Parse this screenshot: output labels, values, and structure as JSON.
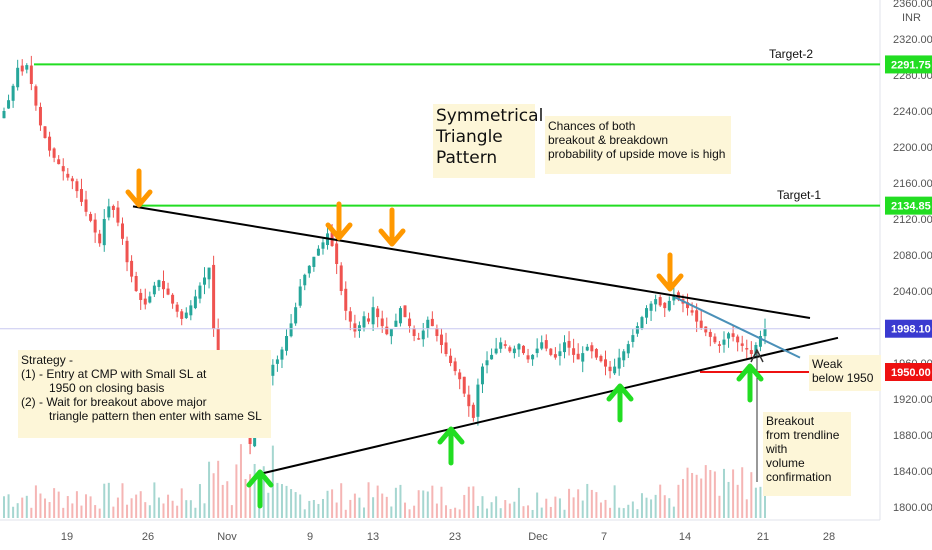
{
  "chart_data": {
    "type": "candlestick",
    "currency": "INR",
    "y_axis": {
      "range": [
        1790,
        2370
      ],
      "ticks": [
        "2360.00",
        "2320.00",
        "2280.00",
        "2240.00",
        "2200.00",
        "2160.00",
        "2120.00",
        "2080.00",
        "2040.00",
        "2000.00",
        "1960.00",
        "1920.00",
        "1880.00",
        "1840.00",
        "1800.00"
      ]
    },
    "x_axis": {
      "ticks": [
        "19",
        "26",
        "Nov",
        "9",
        "13",
        "23",
        "Dec",
        "7",
        "14",
        "21",
        "28"
      ]
    },
    "price_tags": [
      {
        "label": "2291.75",
        "value": 2291.75,
        "color": "#22dd22"
      },
      {
        "label": "2134.85",
        "value": 2134.85,
        "color": "#22dd22"
      },
      {
        "label": "1998.10",
        "value": 1998.1,
        "color": "#3a3ad0"
      },
      {
        "label": "1950.00",
        "value": 1950.0,
        "color": "#ee1111"
      }
    ],
    "horizontal_lines": [
      {
        "name": "Target-2",
        "value": 2291.75,
        "color": "#22dd22"
      },
      {
        "name": "Target-1",
        "value": 2134.85,
        "color": "#22dd22"
      },
      {
        "name": "SL",
        "value": 1950.0,
        "color": "#ee1111"
      },
      {
        "name": "Current",
        "value": 1998.1,
        "color": "#9999e0"
      }
    ],
    "trendlines": {
      "upper": [
        [
          "Oct 26",
          2134
        ],
        [
          "Dec 29",
          2010
        ]
      ],
      "lower": [
        [
          "Nov 4",
          1836
        ],
        [
          "Dec 30",
          1988
        ]
      ]
    },
    "series_close": [
      2240,
      2252,
      2268,
      2288,
      2284,
      2291,
      2270,
      2246,
      2224,
      2210,
      2196,
      2188,
      2181,
      2173,
      2166,
      2162,
      2151,
      2139,
      2128,
      2118,
      2105,
      2093,
      2120,
      2134,
      2130,
      2116,
      2098,
      2072,
      2056,
      2040,
      2030,
      2025,
      2034,
      2046,
      2052,
      2042,
      2036,
      2026,
      2017,
      2009,
      2016,
      2024,
      2034,
      2046,
      2055,
      2066,
      1998,
      1966,
      1952,
      1938,
      1928,
      1918,
      1902,
      1888,
      1870,
      1886,
      1901,
      1931,
      1946,
      1958,
      1964,
      1975,
      1990,
      2004,
      2022,
      2045,
      2058,
      2068,
      2078,
      2087,
      2094,
      2104,
      2090,
      2070,
      2040,
      2018,
      2006,
      1995,
      2002,
      2012,
      2006,
      2022,
      2011,
      2001,
      1992,
      1998,
      2007,
      2021,
      2011,
      2001,
      1990,
      1986,
      1996,
      2008,
      2001,
      1990,
      1980,
      1970,
      1960,
      1951,
      1942,
      1926,
      1912,
      1899,
      1936,
      1956,
      1963,
      1969,
      1976,
      1983,
      1979,
      1973,
      1976,
      1981,
      1971,
      1964,
      1969,
      1976,
      1983,
      1976,
      1969,
      1966,
      1973,
      1983,
      1977,
      1969,
      1964,
      1971,
      1978,
      1973,
      1966,
      1962,
      1956,
      1951,
      1956,
      1966,
      1973,
      1981,
      1991,
      2001,
      2011,
      2021,
      2026,
      2031,
      2024,
      2021,
      2029,
      2036,
      2031,
      2026,
      2021,
      2016,
      2006,
      1999,
      1994,
      1989,
      1983,
      1979,
      1986,
      1993,
      1989,
      1983,
      1979,
      1975,
      1970,
      1980,
      1990,
      1998
    ]
  },
  "annotations": {
    "target2": "Target-2",
    "target1": "Target-1",
    "pattern_title": [
      "Symmetrical",
      "Triangle",
      "Pattern"
    ],
    "chances": [
      "Chances of both",
      "breakout & breakdown",
      "probability of upside move is high"
    ],
    "strategy": [
      "Strategy -",
      "(1) - Entry at CMP with Small SL at",
      "1950 on closing basis",
      "(2) - Wait for breakout above major",
      "triangle pattern then enter with same SL"
    ],
    "weak": [
      "Weak",
      "below 1950"
    ],
    "breakout": [
      "Breakout",
      "from trendline",
      "with",
      "volume",
      "confirmation"
    ]
  },
  "colors": {
    "bull": "#26a69a",
    "bear": "#ef5350",
    "target": "#22dd22",
    "sl": "#ee1111",
    "current": "#3a3ad0",
    "trend": "#000000",
    "blue_line": "#4a90b8",
    "arrow_down": "#ff9800",
    "arrow_up": "#22dd22"
  }
}
